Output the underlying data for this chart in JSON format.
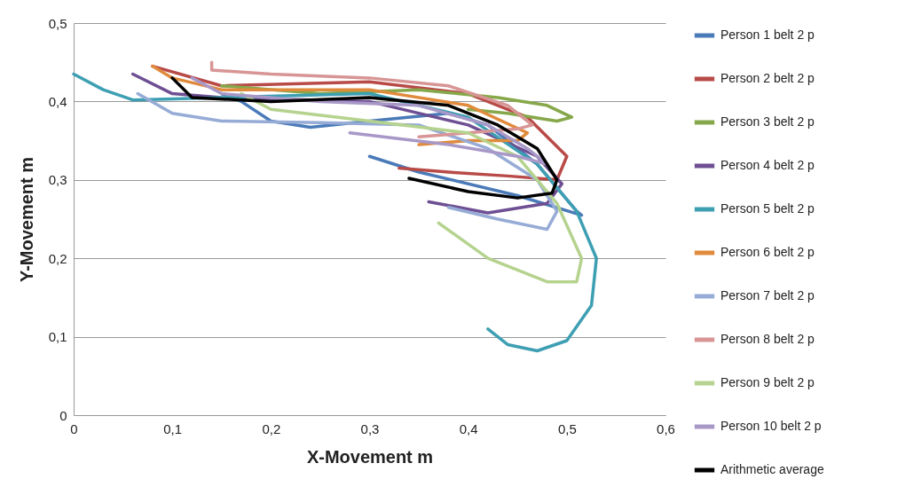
{
  "chart_data": {
    "type": "line",
    "xlabel": "X-Movement  m",
    "ylabel": "Y-Movement  m",
    "xlim": [
      0,
      0.6
    ],
    "ylim": [
      0,
      0.5
    ],
    "xticks": [
      0,
      {
        "value": 0.1,
        "label": "0,1"
      },
      {
        "value": 0.2,
        "label": "0,2"
      },
      {
        "value": 0.3,
        "label": "0,3"
      },
      {
        "value": 0.4,
        "label": "0,4"
      },
      {
        "value": 0.5,
        "label": "0,5"
      },
      {
        "value": 0.6,
        "label": "0,6"
      }
    ],
    "yticks": [
      0,
      {
        "value": 0.1,
        "label": "0,1"
      },
      {
        "value": 0.2,
        "label": "0,2"
      },
      {
        "value": 0.3,
        "label": "0,3"
      },
      {
        "value": 0.4,
        "label": "0,4"
      },
      {
        "value": 0.5,
        "label": "0,5"
      }
    ],
    "grid": "y",
    "legend": "right",
    "marker": "none",
    "line_style": "solid",
    "series": [
      {
        "name": "Person 1 belt 2 p",
        "color": "#4a7ab8",
        "x": [
          0.15,
          0.17,
          0.2,
          0.24,
          0.3,
          0.38,
          0.42,
          0.47,
          0.51,
          0.515,
          0.45,
          0.35,
          0.3
        ],
        "values": [
          0.41,
          0.4,
          0.375,
          0.367,
          0.375,
          0.385,
          0.37,
          0.32,
          0.26,
          0.255,
          0.28,
          0.31,
          0.33
        ]
      },
      {
        "name": "Person 2 belt 2 p",
        "color": "#b84a47",
        "x": [
          0.08,
          0.15,
          0.3,
          0.4,
          0.46,
          0.5,
          0.49,
          0.44,
          0.38,
          0.33
        ],
        "values": [
          0.445,
          0.42,
          0.425,
          0.41,
          0.38,
          0.33,
          0.3,
          0.305,
          0.31,
          0.315
        ]
      },
      {
        "name": "Person 3 belt 2 p",
        "color": "#86a84a",
        "x": [
          0.15,
          0.25,
          0.35,
          0.43,
          0.48,
          0.505,
          0.49,
          0.44,
          0.4
        ],
        "values": [
          0.42,
          0.41,
          0.415,
          0.405,
          0.395,
          0.38,
          0.375,
          0.385,
          0.39
        ]
      },
      {
        "name": "Person 4 belt 2 p",
        "color": "#6e4f93",
        "x": [
          0.06,
          0.1,
          0.15,
          0.3,
          0.4,
          0.47,
          0.495,
          0.48,
          0.42,
          0.36
        ],
        "values": [
          0.435,
          0.41,
          0.405,
          0.4,
          0.37,
          0.33,
          0.295,
          0.27,
          0.258,
          0.272
        ]
      },
      {
        "name": "Person 5 belt 2 p",
        "color": "#3e9fb3",
        "x": [
          0,
          0.03,
          0.06,
          0.15,
          0.3,
          0.4,
          0.47,
          0.51,
          0.53,
          0.525,
          0.5,
          0.47,
          0.44,
          0.42
        ],
        "values": [
          0.435,
          0.415,
          0.402,
          0.405,
          0.41,
          0.38,
          0.32,
          0.26,
          0.2,
          0.14,
          0.095,
          0.082,
          0.09,
          0.11
        ]
      },
      {
        "name": "Person 6 belt 2 p",
        "color": "#e08a3c",
        "x": [
          0.08,
          0.1,
          0.15,
          0.3,
          0.4,
          0.46,
          0.45,
          0.4,
          0.35
        ],
        "values": [
          0.445,
          0.43,
          0.415,
          0.415,
          0.395,
          0.36,
          0.35,
          0.35,
          0.345
        ]
      },
      {
        "name": "Person 7 belt 2 p",
        "color": "#96acd6",
        "x": [
          0.065,
          0.1,
          0.15,
          0.25,
          0.35,
          0.42,
          0.47,
          0.49,
          0.48,
          0.43,
          0.38
        ],
        "values": [
          0.41,
          0.385,
          0.375,
          0.373,
          0.37,
          0.34,
          0.3,
          0.26,
          0.237,
          0.25,
          0.265
        ]
      },
      {
        "name": "Person 8 belt 2 p",
        "color": "#d89595",
        "x": [
          0.14,
          0.14,
          0.2,
          0.3,
          0.38,
          0.44,
          0.465,
          0.45,
          0.4,
          0.35
        ],
        "values": [
          0.45,
          0.44,
          0.435,
          0.43,
          0.42,
          0.395,
          0.37,
          0.365,
          0.36,
          0.355
        ]
      },
      {
        "name": "Person 9 belt 2 p",
        "color": "#b5d38e",
        "x": [
          0.17,
          0.2,
          0.3,
          0.4,
          0.45,
          0.49,
          0.515,
          0.51,
          0.48,
          0.42,
          0.37
        ],
        "values": [
          0.41,
          0.39,
          0.375,
          0.36,
          0.33,
          0.27,
          0.2,
          0.17,
          0.17,
          0.2,
          0.245
        ]
      },
      {
        "name": "Person 10 belt 2 p",
        "color": "#a898c8",
        "x": [
          0.12,
          0.15,
          0.25,
          0.35,
          0.42,
          0.46,
          0.48,
          0.45,
          0.38,
          0.28
        ],
        "values": [
          0.43,
          0.41,
          0.4,
          0.395,
          0.37,
          0.34,
          0.32,
          0.33,
          0.345,
          0.36
        ]
      },
      {
        "name": "Arithmetic average",
        "color": "#000000",
        "x": [
          0.1,
          0.12,
          0.2,
          0.3,
          0.38,
          0.43,
          0.47,
          0.49,
          0.485,
          0.45,
          0.4,
          0.34
        ],
        "values": [
          0.43,
          0.405,
          0.4,
          0.405,
          0.395,
          0.37,
          0.34,
          0.3,
          0.283,
          0.277,
          0.285,
          0.302
        ]
      }
    ]
  }
}
